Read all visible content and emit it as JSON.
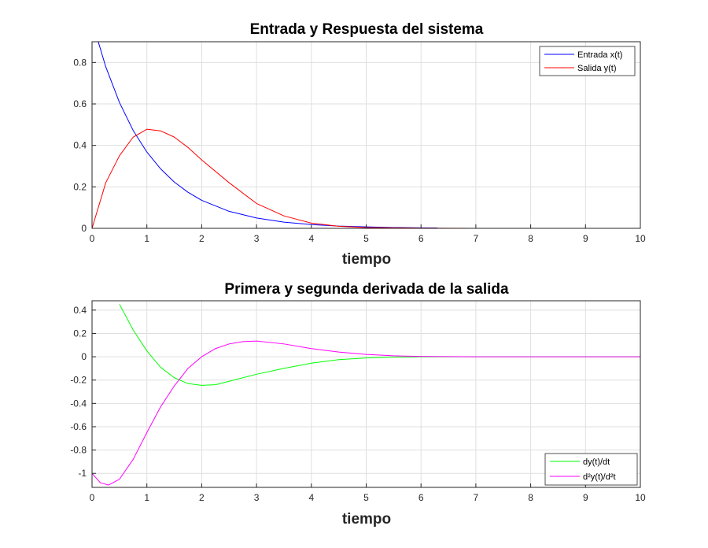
{
  "chart_data": [
    {
      "type": "line",
      "title": "Entrada y Respuesta del sistema",
      "xlabel": "tiempo",
      "ylabel": "",
      "xlim": [
        0,
        10
      ],
      "ylim": [
        0,
        0.9
      ],
      "xticks": [
        0,
        1,
        2,
        3,
        4,
        5,
        6,
        7,
        8,
        9,
        10
      ],
      "yticks": [
        0,
        0.2,
        0.4,
        0.6,
        0.8
      ],
      "grid": true,
      "legend_position": "top-right",
      "series": [
        {
          "name": "Entrada x(t)",
          "color": "#0000ff",
          "x": [
            0,
            0.25,
            0.5,
            0.75,
            1,
            1.25,
            1.5,
            1.75,
            2,
            2.5,
            3,
            3.5,
            4,
            4.5,
            5,
            5.5,
            6,
            6.3
          ],
          "y": [
            1.0,
            0.779,
            0.607,
            0.472,
            0.368,
            0.287,
            0.223,
            0.174,
            0.135,
            0.082,
            0.05,
            0.03,
            0.018,
            0.011,
            0.007,
            0.004,
            0.0025,
            0.002
          ]
        },
        {
          "name": "Salida y(t)",
          "color": "#ff0000",
          "x": [
            0,
            0.25,
            0.5,
            0.75,
            1,
            1.25,
            1.5,
            1.75,
            2,
            2.5,
            3,
            3.5,
            4,
            4.5,
            5,
            6,
            7,
            8,
            9,
            10
          ],
          "y": [
            0.0,
            0.22,
            0.35,
            0.44,
            0.478,
            0.47,
            0.44,
            0.39,
            0.33,
            0.22,
            0.12,
            0.06,
            0.025,
            0.01,
            0.004,
            0.001,
            0.0,
            0.0,
            0.0,
            0.0
          ]
        }
      ]
    },
    {
      "type": "line",
      "title": "Primera y segunda derivada de la salida",
      "xlabel": "tiempo",
      "ylabel": "",
      "xlim": [
        0,
        10
      ],
      "ylim": [
        -1.12,
        0.48
      ],
      "xticks": [
        0,
        1,
        2,
        3,
        4,
        5,
        6,
        7,
        8,
        9,
        10
      ],
      "yticks": [
        -1,
        -0.8,
        -0.6,
        -0.4,
        -0.2,
        0,
        0.2,
        0.4
      ],
      "grid": true,
      "legend_position": "bottom-right",
      "series": [
        {
          "name": "dy(t)/dt",
          "color": "#00ff00",
          "x": [
            0.5,
            0.75,
            1,
            1.25,
            1.5,
            1.75,
            2,
            2.25,
            2.5,
            3,
            3.5,
            4,
            4.5,
            5,
            5.5,
            6,
            6.5,
            7,
            8,
            9,
            10
          ],
          "y": [
            0.45,
            0.23,
            0.05,
            -0.09,
            -0.18,
            -0.23,
            -0.245,
            -0.24,
            -0.21,
            -0.15,
            -0.1,
            -0.055,
            -0.025,
            -0.01,
            -0.003,
            0.0,
            0.0,
            0.0,
            0.0,
            0.0,
            0.0
          ]
        },
        {
          "name": "d²y(t)/d²t",
          "color": "#ff00ff",
          "x": [
            0,
            0.15,
            0.3,
            0.5,
            0.75,
            1,
            1.25,
            1.5,
            1.75,
            2,
            2.25,
            2.5,
            2.75,
            3,
            3.5,
            4,
            4.5,
            5,
            5.5,
            6,
            7,
            8,
            9,
            10
          ],
          "y": [
            -1.0,
            -1.08,
            -1.1,
            -1.05,
            -0.88,
            -0.65,
            -0.43,
            -0.25,
            -0.1,
            0.0,
            0.07,
            0.11,
            0.13,
            0.135,
            0.11,
            0.07,
            0.04,
            0.02,
            0.008,
            0.003,
            0.0,
            0.0,
            0.0,
            0.0
          ]
        }
      ]
    }
  ]
}
